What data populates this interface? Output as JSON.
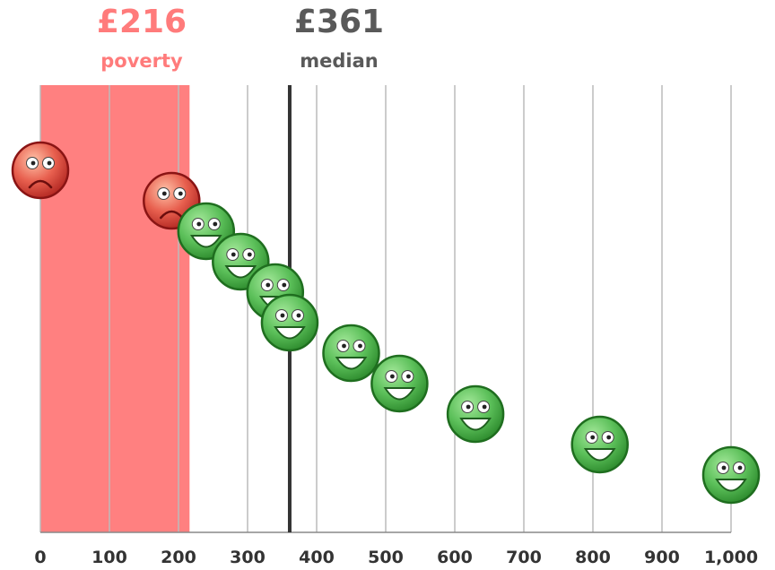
{
  "chart_data": {
    "type": "scatter",
    "title": "",
    "xlabel": "",
    "ylabel": "",
    "xlim": [
      0,
      1000
    ],
    "x_ticks": [
      0,
      100,
      200,
      300,
      400,
      500,
      600,
      700,
      800,
      900,
      1000
    ],
    "x_tick_labels": [
      "0",
      "100",
      "200",
      "300",
      "400",
      "500",
      "600",
      "700",
      "800",
      "900",
      "1,000"
    ],
    "grid": "vertical",
    "legend": "none",
    "shaded_region": {
      "from": 0,
      "to": 216,
      "color": "#ff8080"
    },
    "markers": [
      {
        "id": "poverty",
        "value": 216,
        "value_label": "£216",
        "name": "poverty",
        "color": "#ff7b7b"
      },
      {
        "id": "median",
        "value": 361,
        "value_label": "£361",
        "name": "median",
        "color": "#595959"
      }
    ],
    "points": [
      {
        "x": 0,
        "face": "sad"
      },
      {
        "x": 190,
        "face": "sad"
      },
      {
        "x": 240,
        "face": "happy"
      },
      {
        "x": 290,
        "face": "happy"
      },
      {
        "x": 340,
        "face": "happy"
      },
      {
        "x": 361,
        "face": "happy"
      },
      {
        "x": 450,
        "face": "happy"
      },
      {
        "x": 520,
        "face": "happy"
      },
      {
        "x": 630,
        "face": "happy"
      },
      {
        "x": 810,
        "face": "happy"
      },
      {
        "x": 1000,
        "face": "happy"
      }
    ],
    "colors": {
      "sad_fill": "#e8604f",
      "sad_stroke": "#8a1414",
      "happy_fill": "#5cc05a",
      "happy_stroke": "#1f6e1f",
      "grid": "#bbbbbb",
      "median_line": "#333333",
      "axis": "#888888"
    }
  }
}
